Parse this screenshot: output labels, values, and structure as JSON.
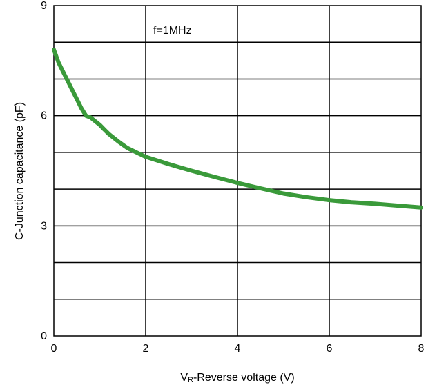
{
  "chart_data": {
    "type": "line",
    "title": "",
    "xlabel": {
      "main": "V",
      "sub": "R",
      "rest": "-Reverse voltage (V)"
    },
    "ylabel": "C-Junction capacitance (pF)",
    "xlim": [
      0,
      8
    ],
    "ylim": [
      0,
      9
    ],
    "x_ticks": [
      "0",
      "2",
      "4",
      "6",
      "8"
    ],
    "y_ticks": [
      "0",
      "3",
      "6",
      "9"
    ],
    "grid": true,
    "x_grid_step": 2,
    "y_grid_step": 1,
    "annotation": "f=1MHz",
    "series": [
      {
        "color": "#3a9a3a",
        "x": [
          0,
          0.1,
          0.2,
          0.3,
          0.4,
          0.5,
          0.6,
          0.7,
          0.8,
          0.9,
          1.0,
          1.1,
          1.2,
          1.4,
          1.6,
          1.8,
          2.0,
          2.5,
          3.0,
          3.5,
          4.0,
          4.5,
          5.0,
          5.5,
          6.0,
          6.5,
          7.0,
          7.5,
          8.0
        ],
        "y": [
          7.8,
          7.45,
          7.2,
          6.95,
          6.7,
          6.45,
          6.2,
          6.0,
          5.95,
          5.85,
          5.75,
          5.62,
          5.5,
          5.3,
          5.12,
          5.0,
          4.88,
          4.68,
          4.5,
          4.33,
          4.17,
          4.02,
          3.88,
          3.78,
          3.7,
          3.64,
          3.6,
          3.55,
          3.5
        ]
      }
    ]
  }
}
